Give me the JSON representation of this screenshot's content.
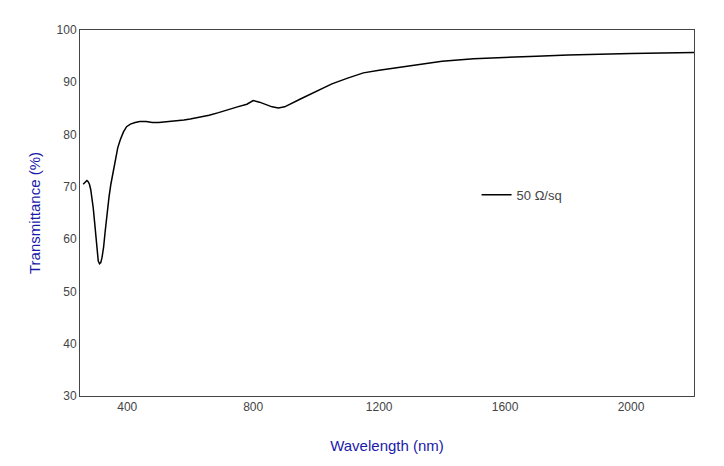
{
  "chart_data": {
    "type": "line",
    "xlabel": "Wavelength (nm)",
    "ylabel": "Transmittance (%)",
    "x": [
      260,
      268,
      272,
      276,
      280,
      284,
      288,
      292,
      296,
      300,
      304,
      308,
      312,
      316,
      320,
      325,
      330,
      336,
      342,
      348,
      355,
      362,
      370,
      378,
      388,
      398,
      410,
      425,
      440,
      460,
      480,
      500,
      520,
      540,
      560,
      580,
      600,
      630,
      660,
      690,
      720,
      750,
      780,
      800,
      820,
      840,
      860,
      880,
      900,
      950,
      1000,
      1050,
      1100,
      1150,
      1200,
      1300,
      1400,
      1500,
      1600,
      1700,
      1800,
      1900,
      2000,
      2100,
      2200
    ],
    "series": [
      {
        "name": "50 Ω/sq",
        "color": "#000000",
        "values": [
          70.5,
          71.0,
          71.2,
          71.0,
          70.5,
          69.5,
          68.0,
          66.0,
          63.5,
          60.5,
          57.5,
          55.8,
          55.3,
          55.5,
          56.5,
          58.5,
          61.5,
          65.0,
          68.0,
          70.5,
          73.0,
          75.5,
          77.5,
          79.0,
          80.5,
          81.5,
          82.0,
          82.3,
          82.5,
          82.5,
          82.3,
          82.3,
          82.4,
          82.5,
          82.7,
          82.8,
          83.0,
          83.3,
          83.7,
          84.2,
          84.8,
          85.3,
          85.8,
          86.5,
          86.2,
          85.7,
          85.3,
          85.1,
          85.3,
          86.8,
          88.2,
          89.7,
          90.8,
          91.8,
          92.3,
          93.2,
          94.0,
          94.5,
          94.8,
          95.0,
          95.2,
          95.4,
          95.5,
          95.6,
          95.7
        ]
      }
    ],
    "xlim": [
      250,
      2200
    ],
    "ylim": [
      30,
      100
    ],
    "xticks": [
      400,
      800,
      1200,
      1600,
      2000
    ],
    "yticks": [
      30,
      40,
      50,
      60,
      70,
      80,
      90,
      100
    ],
    "grid": false,
    "legend": "right"
  }
}
